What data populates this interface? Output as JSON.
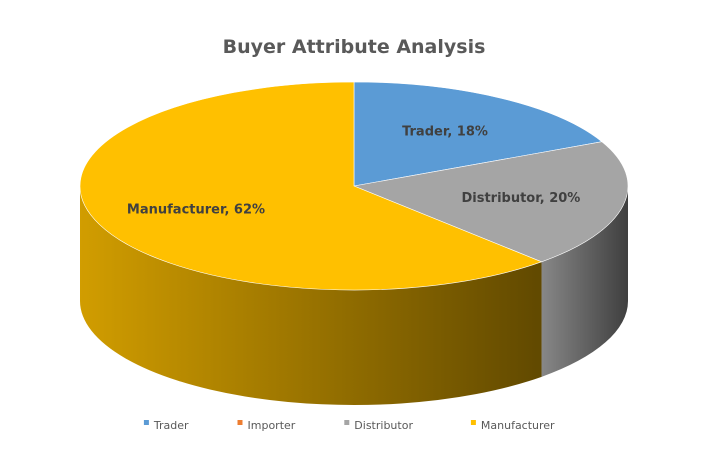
{
  "chart_data": {
    "type": "pie",
    "title": "Buyer Attribute Analysis",
    "categories": [
      "Trader",
      "Importer",
      "Distributor",
      "Manufacturer"
    ],
    "values": [
      18,
      0,
      20,
      62
    ],
    "labels": [
      "Trader, 18%",
      "",
      "Distributor, 20%",
      "Manufacturer, 62%"
    ],
    "colors": [
      "#5B9BD5",
      "#ED7D31",
      "#A5A5A5",
      "#FFC000"
    ],
    "legend": "bottom",
    "style": "3d-pie"
  }
}
